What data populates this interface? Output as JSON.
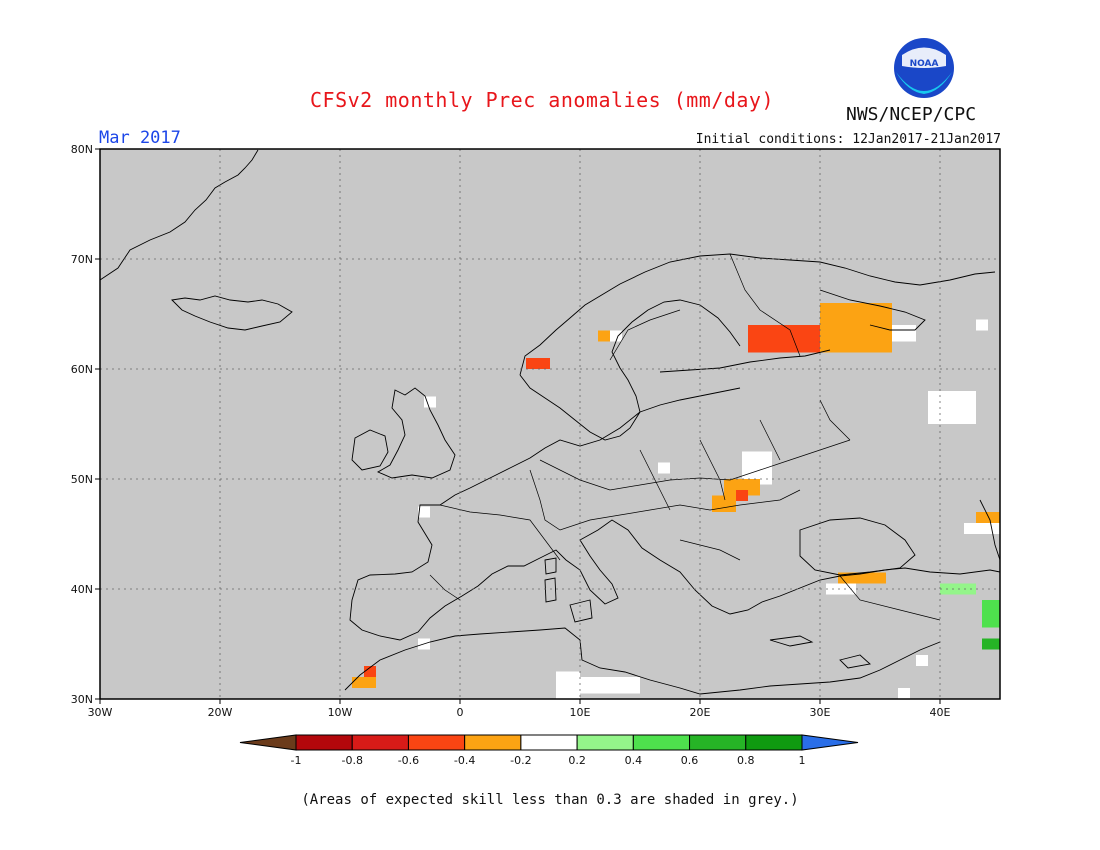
{
  "header": {
    "title": "CFSv2 monthly Prec anomalies (mm/day)",
    "agency": "NWS/NCEP/CPC",
    "logo_text": "NOAA",
    "period": "Mar 2017",
    "initial_conditions": "Initial conditions: 12Jan2017-21Jan2017"
  },
  "map": {
    "lon_range": [
      -30,
      45
    ],
    "lat_range": [
      30,
      80
    ],
    "lon_ticks": [
      {
        "lon": -30,
        "label": "30W"
      },
      {
        "lon": -20,
        "label": "20W"
      },
      {
        "lon": -10,
        "label": "10W"
      },
      {
        "lon": 0,
        "label": "0"
      },
      {
        "lon": 10,
        "label": "10E"
      },
      {
        "lon": 20,
        "label": "20E"
      },
      {
        "lon": 30,
        "label": "30E"
      },
      {
        "lon": 40,
        "label": "40E"
      }
    ],
    "lat_ticks": [
      {
        "lat": 30,
        "label": "30N"
      },
      {
        "lat": 40,
        "label": "40N"
      },
      {
        "lat": 50,
        "label": "50N"
      },
      {
        "lat": 60,
        "label": "60N"
      },
      {
        "lat": 70,
        "label": "70N"
      },
      {
        "lat": 80,
        "label": "80N"
      }
    ],
    "grid_lines": "dotted",
    "background_color": "#c8c8c8",
    "land_color": "#c8c8c8",
    "anomaly_patches": [
      {
        "lon": [
          24,
          30
        ],
        "lat": [
          61.5,
          64
        ],
        "value": -0.5
      },
      {
        "lon": [
          30,
          36
        ],
        "lat": [
          61.5,
          66
        ],
        "value": -0.3
      },
      {
        "lon": [
          5.5,
          7.5
        ],
        "lat": [
          60,
          61
        ],
        "value": -0.5
      },
      {
        "lon": [
          11.5,
          12.5
        ],
        "lat": [
          62.5,
          63.5
        ],
        "value": -0.3
      },
      {
        "lon": [
          22,
          25
        ],
        "lat": [
          48.5,
          50
        ],
        "value": -0.3
      },
      {
        "lon": [
          21,
          23
        ],
        "lat": [
          47,
          48.5
        ],
        "value": -0.3
      },
      {
        "lon": [
          23,
          24
        ],
        "lat": [
          48,
          49
        ],
        "value": -0.5
      },
      {
        "lon": [
          31.5,
          35.5
        ],
        "lat": [
          40.5,
          41.5
        ],
        "value": -0.3
      },
      {
        "lon": [
          -9,
          -7
        ],
        "lat": [
          31,
          32
        ],
        "value": -0.3
      },
      {
        "lon": [
          -8,
          -7
        ],
        "lat": [
          32,
          33
        ],
        "value": -0.5
      },
      {
        "lon": [
          43,
          45
        ],
        "lat": [
          46,
          47
        ],
        "value": -0.3
      },
      {
        "lon": [
          40,
          43
        ],
        "lat": [
          39.5,
          40.5
        ],
        "value": 0.3
      },
      {
        "lon": [
          43.5,
          45
        ],
        "lat": [
          36.5,
          39
        ],
        "value": 0.5
      },
      {
        "lon": [
          43.5,
          45
        ],
        "lat": [
          34.5,
          35.5
        ],
        "value": 0.7
      }
    ],
    "white_patches": [
      {
        "lon": [
          39,
          43
        ],
        "lat": [
          55,
          58
        ]
      },
      {
        "lon": [
          23.5,
          26
        ],
        "lat": [
          49.5,
          52.5
        ]
      },
      {
        "lon": [
          8,
          10
        ],
        "lat": [
          29.5,
          32.5
        ]
      },
      {
        "lon": [
          10,
          15
        ],
        "lat": [
          30.5,
          32
        ]
      },
      {
        "lon": [
          35.5,
          38
        ],
        "lat": [
          62.5,
          64
        ]
      },
      {
        "lon": [
          43,
          44
        ],
        "lat": [
          63.5,
          64.5
        ]
      },
      {
        "lon": [
          42,
          45
        ],
        "lat": [
          45,
          46
        ]
      },
      {
        "lon": [
          30.5,
          33
        ],
        "lat": [
          39.5,
          40.5
        ]
      },
      {
        "lon": [
          -3,
          -2
        ],
        "lat": [
          56.5,
          57.5
        ]
      },
      {
        "lon": [
          16.5,
          17.5
        ],
        "lat": [
          50.5,
          51.5
        ]
      },
      {
        "lon": [
          -3.5,
          -2.5
        ],
        "lat": [
          46.5,
          47.5
        ]
      },
      {
        "lon": [
          -3.5,
          -2.5
        ],
        "lat": [
          34.5,
          35.5
        ]
      },
      {
        "lon": [
          36.5,
          37.5
        ],
        "lat": [
          30,
          31
        ]
      },
      {
        "lon": [
          38,
          39
        ],
        "lat": [
          33,
          34
        ]
      },
      {
        "lon": [
          12.5,
          13.5
        ],
        "lat": [
          62.5,
          63.5
        ]
      }
    ]
  },
  "colorbar": {
    "levels": [
      "-1",
      "-0.8",
      "-0.6",
      "-0.4",
      "-0.2",
      "0.2",
      "0.4",
      "0.6",
      "0.8",
      "1"
    ],
    "colors": [
      "#6b3b1b",
      "#b3070b",
      "#d81b18",
      "#fa4513",
      "#fca313",
      "#ffffff",
      "#94f58a",
      "#4ee14d",
      "#26b426",
      "#0f9a10",
      "#2a6ee8"
    ]
  },
  "footnote": "(Areas of expected skill less than 0.3 are shaded in grey.)"
}
